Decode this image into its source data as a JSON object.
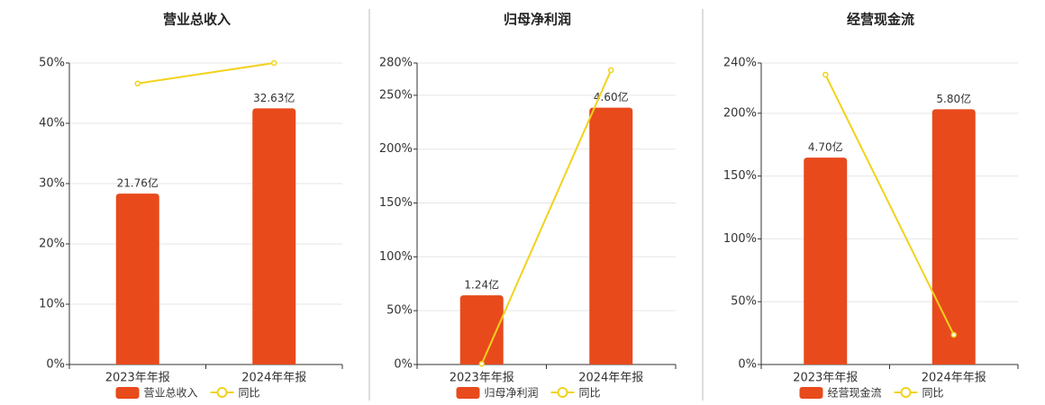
{
  "chart_data": [
    {
      "type": "bar",
      "title": "营业总收入",
      "categories": [
        "2023年年报",
        "2024年年报"
      ],
      "series": [
        {
          "name": "营业总收入",
          "color": "#e84a1c",
          "values": [
            21.76,
            32.63
          ],
          "value_labels": [
            "21.76亿",
            "32.63亿"
          ],
          "axis": "y2"
        },
        {
          "name": "同比",
          "color": "#f2d21b",
          "type": "line",
          "values": [
            46.6,
            50
          ]
        }
      ],
      "ylim": [
        0,
        50
      ],
      "yticks": [
        {
          "value": 0,
          "label": "0%"
        },
        {
          "value": 10,
          "label": "10%"
        },
        {
          "value": 20,
          "label": "20%"
        },
        {
          "value": 30,
          "label": "30%"
        },
        {
          "value": 40,
          "label": "40%"
        },
        {
          "value": 50,
          "label": "50%"
        }
      ],
      "y2lim": [
        0,
        38.4
      ],
      "grid": true
    },
    {
      "type": "bar",
      "title": "归母净利润",
      "categories": [
        "2023年年报",
        "2024年年报"
      ],
      "series": [
        {
          "name": "归母净利润",
          "color": "#e84a1c",
          "values": [
            1.24,
            4.6
          ],
          "value_labels": [
            "1.24亿",
            "4.60亿"
          ],
          "axis": "y2"
        },
        {
          "name": "同比",
          "color": "#f2d21b",
          "type": "line",
          "values": [
            0.6,
            273.3
          ]
        }
      ],
      "ylim": [
        0,
        280
      ],
      "yticks": [
        {
          "value": 0,
          "label": "0%"
        },
        {
          "value": 50,
          "label": "50%"
        },
        {
          "value": 100,
          "label": "100%"
        },
        {
          "value": 150,
          "label": "150%"
        },
        {
          "value": 200,
          "label": "200%"
        },
        {
          "value": 250,
          "label": "250%"
        },
        {
          "value": 280,
          "label": "280%"
        }
      ],
      "y2lim": [
        0,
        5.4
      ],
      "grid": true
    },
    {
      "type": "bar",
      "title": "经营现金流",
      "categories": [
        "2023年年报",
        "2024年年报"
      ],
      "series": [
        {
          "name": "经营现金流",
          "color": "#e84a1c",
          "values": [
            4.7,
            5.8
          ],
          "value_labels": [
            "4.70亿",
            "5.80亿"
          ],
          "axis": "y2"
        },
        {
          "name": "同比",
          "color": "#f2d21b",
          "type": "line",
          "values": [
            230.7,
            23.6
          ]
        }
      ],
      "ylim": [
        0,
        240
      ],
      "yticks": [
        {
          "value": 0,
          "label": "0%"
        },
        {
          "value": 50,
          "label": "50%"
        },
        {
          "value": 100,
          "label": "100%"
        },
        {
          "value": 150,
          "label": "150%"
        },
        {
          "value": 200,
          "label": "200%"
        },
        {
          "value": 240,
          "label": "240%"
        }
      ],
      "y2lim": [
        0,
        6.85
      ],
      "grid": true
    }
  ]
}
